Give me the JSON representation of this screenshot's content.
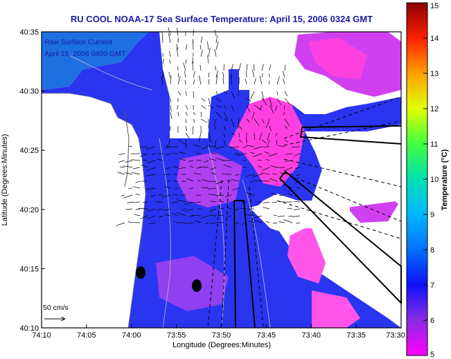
{
  "title": "RU COOL  NOAA-17  Sea Surface Temperature:  April 15, 2006 0324 GMT",
  "overlay": {
    "line1": "Raw Surface Current",
    "line2": "April 15, 2006 0400 GMT"
  },
  "scale_arrow_label": "50 cm/s",
  "axes": {
    "xlabel": "Longitude (Degrees:Minutes)",
    "ylabel": "Latitude (Degrees:Minutes)",
    "x_ticks": [
      "74:10",
      "74:05",
      "74:00",
      "73:55",
      "73:50",
      "73:45",
      "73:40",
      "73:35",
      "73:30"
    ],
    "y_ticks": [
      "40:35",
      "40:30",
      "40:25",
      "40:20",
      "40:15",
      "40:10"
    ]
  },
  "colorbar": {
    "label": "Temperature (°C)",
    "ticks": [
      "15",
      "14",
      "13",
      "12",
      "11",
      "10",
      "9",
      "8",
      "7",
      "6",
      "5"
    ],
    "range": [
      5,
      15
    ],
    "stops": [
      "#ff00ff",
      "#8a2be2",
      "#1010ff",
      "#0080ff",
      "#00c8ff",
      "#00e0a0",
      "#60ff40",
      "#ffff00",
      "#ff9000",
      "#ff1010",
      "#8b0000"
    ]
  },
  "colors": {
    "land": "#ffffff",
    "sea_primary": "#2a35f0",
    "sea_warm": "#ff40e0",
    "title_color": "#1a1aa8"
  }
}
